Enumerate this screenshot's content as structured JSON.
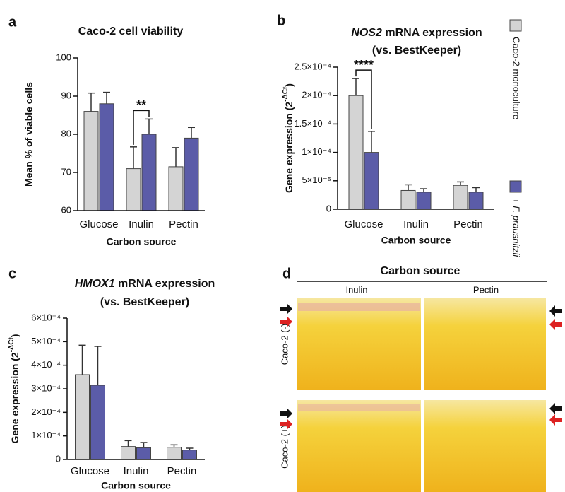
{
  "chart_data": [
    {
      "type": "bar",
      "panel": "a",
      "title": "Caco-2 cell viability",
      "ylabel": "Mean % of viable cells",
      "xlabel": "Carbon source",
      "categories": [
        "Glucose",
        "Inulin",
        "Pectin"
      ],
      "series": [
        {
          "color": "#d4d4d4",
          "values": [
            86,
            71,
            71.5
          ],
          "errors": [
            4.8,
            5.7,
            5
          ]
        },
        {
          "color": "#5b5ca8",
          "values": [
            88,
            80,
            79
          ],
          "errors": [
            3,
            4,
            2.8
          ]
        }
      ],
      "ylim": [
        60,
        100
      ],
      "yticks": [
        60,
        70,
        80,
        90,
        100
      ],
      "grid": false,
      "annotation": "**"
    },
    {
      "type": "bar",
      "panel": "b",
      "title": [
        "NOS2",
        " mRNA expression"
      ],
      "subtitle": "(vs. BestKeeper)",
      "ylabel": [
        "Gene expression (2",
        "-ΔCt",
        ")"
      ],
      "xlabel": "Carbon source",
      "categories": [
        "Glucose",
        "Inulin",
        "Pectin"
      ],
      "series": [
        {
          "name": "Caco-2 monoculture",
          "color": "#d4d4d4",
          "values": [
            0.0002,
            3.3e-05,
            4.2e-05
          ],
          "errors": [
            3e-05,
            1e-05,
            6e-06
          ]
        },
        {
          "name": "+ F. prausnitzii",
          "color": "#5b5ca8",
          "values": [
            0.0001,
            3e-05,
            3e-05
          ],
          "errors": [
            3.7e-05,
            6e-06,
            8e-06
          ]
        }
      ],
      "ylim": [
        0,
        0.00025
      ],
      "yticks": [
        0,
        {
          "value": 5e-05,
          "label": "5×10⁻⁵"
        },
        {
          "value": 0.0001,
          "label": "1×10⁻⁴"
        },
        {
          "value": 0.00015,
          "label": "1.5×10⁻⁴"
        },
        {
          "value": 0.0002,
          "label": "2×10⁻⁴"
        },
        {
          "value": 0.00025,
          "label": "2.5×10⁻⁴"
        }
      ],
      "grid": false,
      "legend": "right",
      "annotation": "****"
    },
    {
      "type": "bar",
      "panel": "c",
      "title": [
        "HMOX1",
        " mRNA expression"
      ],
      "subtitle": "(vs. BestKeeper)",
      "ylabel": [
        "Gene expression (2",
        "-ΔCt",
        ")"
      ],
      "xlabel": "Carbon source",
      "categories": [
        "Glucose",
        "Inulin",
        "Pectin"
      ],
      "series": [
        {
          "color": "#d4d4d4",
          "values": [
            0.00036,
            5.5e-05,
            5.2e-05
          ],
          "errors": [
            0.000125,
            2.5e-05,
            1e-05
          ]
        },
        {
          "color": "#5b5ca8",
          "values": [
            0.000315,
            5e-05,
            4e-05
          ],
          "errors": [
            0.000165,
            2.2e-05,
            8e-06
          ]
        }
      ],
      "ylim": [
        0,
        0.0006
      ],
      "yticks": [
        0,
        {
          "value": 0.0001,
          "label": "1×10⁻⁴"
        },
        {
          "value": 0.0002,
          "label": "2×10⁻⁴"
        },
        {
          "value": 0.0003,
          "label": "3×10⁻⁴"
        },
        {
          "value": 0.0004,
          "label": "4×10⁻⁴"
        },
        {
          "value": 0.0005,
          "label": "5×10⁻⁴"
        },
        {
          "value": 0.0006,
          "label": "6×10⁻⁴"
        }
      ],
      "grid": false
    }
  ],
  "photo_panel": {
    "panel": "d",
    "title": "Carbon source",
    "columns": [
      "Inulin",
      "Pectin"
    ],
    "rows": [
      "Caco-2 (-)",
      "Caco-2 (+)"
    ]
  }
}
